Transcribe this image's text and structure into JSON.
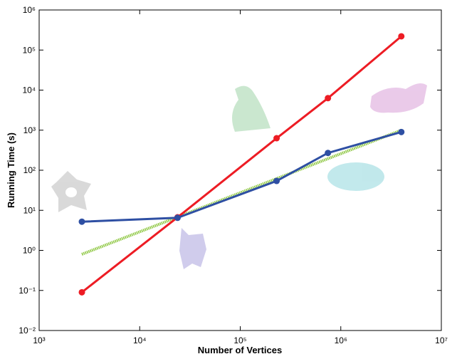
{
  "chart_data": {
    "type": "line",
    "x_label": "Number of Vertices",
    "y_label": "Running Time (s)",
    "xscale": "log",
    "yscale": "log",
    "xlim": [
      1000,
      10000000
    ],
    "ylim": [
      0.01,
      1000000
    ],
    "xticks": [
      {
        "value": 1000,
        "label": "10³"
      },
      {
        "value": 10000,
        "label": "10⁴"
      },
      {
        "value": 100000,
        "label": "10⁵"
      },
      {
        "value": 1000000,
        "label": "10⁶"
      },
      {
        "value": 10000000,
        "label": "10⁷"
      }
    ],
    "yticks": [
      {
        "value": 0.01,
        "label": "10⁻²"
      },
      {
        "value": 0.1,
        "label": "10⁻¹"
      },
      {
        "value": 1,
        "label": "10⁰"
      },
      {
        "value": 10,
        "label": "10¹"
      },
      {
        "value": 100,
        "label": "10²"
      },
      {
        "value": 1000,
        "label": "10³"
      },
      {
        "value": 10000,
        "label": "10⁴"
      },
      {
        "value": 100000,
        "label": "10⁵"
      },
      {
        "value": 1000000,
        "label": "10⁶"
      }
    ],
    "series": [
      {
        "color": "#8cc63f",
        "markers": false,
        "dashed": true,
        "x": [
          2660,
          4000000
        ],
        "values": [
          0.8,
          1000
        ]
      },
      {
        "color": "#ed1c24",
        "markers": true,
        "dashed": false,
        "x": [
          2660,
          23800,
          230000,
          745000,
          4000000
        ],
        "values": [
          0.09,
          6.7,
          630,
          6300,
          220000
        ]
      },
      {
        "color": "#2e4fa3",
        "markers": true,
        "dashed": false,
        "x": [
          2660,
          23800,
          230000,
          745000,
          4000000
        ],
        "values": [
          5.2,
          6.5,
          54,
          270,
          900
        ]
      }
    ]
  }
}
